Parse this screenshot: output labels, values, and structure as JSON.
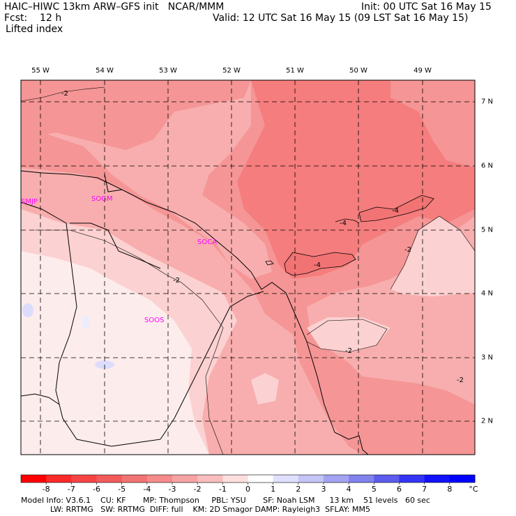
{
  "header": {
    "title_left": "HAIC–HIWC 13km ARW–GFS init   NCAR/MMM",
    "fcst": "Fcst:    12 h",
    "field": "Lifted index",
    "init": "Init: 00 UTC Sat 16 May 15",
    "valid": "Valid: 12 UTC Sat 16 May 15 (09 LST Sat 16 May 15)"
  },
  "map": {
    "lon_labels": [
      "55 W",
      "54 W",
      "53 W",
      "52 W",
      "51 W",
      "50 W",
      "49 W"
    ],
    "lat_labels": [
      "7 N",
      "6 N",
      "5 N",
      "4 N",
      "3 N",
      "2 N"
    ],
    "stations": [
      "SMJP",
      "SOGM",
      "SOCA",
      "SOOS"
    ],
    "contour_labels": [
      "-2",
      "-2",
      "-4",
      "-4",
      "-4",
      "-2",
      "-2",
      "-2"
    ],
    "colors": {
      "lt_minus4": "#f57d7d",
      "minus4_to_minus3": "#f59595",
      "minus3_to_minus2": "#f8aeae",
      "minus2_to_minus1": "#fcd1d1",
      "minus1_to_0": "#fdecec",
      "zero_to_1": "#dcdcfc"
    }
  },
  "colorbar": {
    "labels": [
      "-8",
      "-7",
      "-6",
      "-5",
      "-4",
      "-3",
      "-2",
      "-1",
      "0",
      "1",
      "2",
      "3",
      "4",
      "5",
      "6",
      "7",
      "8"
    ],
    "unit": "°C",
    "colors": [
      "#ff0000",
      "#fa2a2a",
      "#f54444",
      "#f25b5b",
      "#f27373",
      "#f58b8b",
      "#f6a3a3",
      "#f9bdbd",
      "#fcdede",
      "#ffffff",
      "#e0e0ff",
      "#c4c4f6",
      "#a3a3f2",
      "#8282ee",
      "#5c5cee",
      "#3434f4",
      "#1111fa",
      "#0000ff"
    ]
  },
  "footer": {
    "line1": "Model Info: V3.6.1    CU: KF       MP: Thompson     PBL: YSU       SF: Noah LSM      13 km    51 levels   60 sec",
    "line2": "            LW: RRTMG   SW: RRTMG  DIFF: full    KM: 2D Smagor DAMP: Rayleigh3  SFLAY: MM5"
  }
}
